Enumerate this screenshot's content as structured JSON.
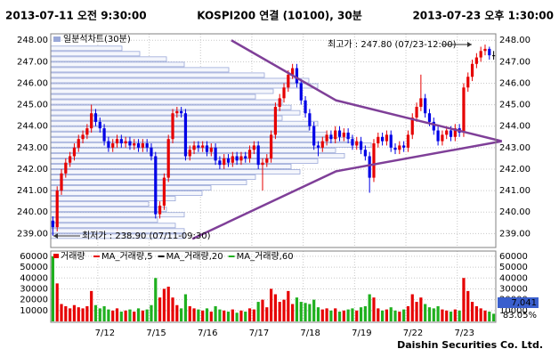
{
  "header": {
    "start": "2013-07-11 오전 9:30:00",
    "title": "KOSPI200 연결 (10100), 30분",
    "end": "2013-07-23 오후 1:30:00"
  },
  "footer": "Daishin Securities Co. Ltd.",
  "chart_data": {
    "type": "candlestick",
    "up_color": "#e60000",
    "down_color": "#0000e6",
    "grid": true,
    "ylim": [
      238.35,
      248.3
    ],
    "yticks": [
      {
        "value": 239,
        "label": "239.00"
      },
      {
        "value": 240,
        "label": "240.00"
      },
      {
        "value": 241,
        "label": "241.00"
      },
      {
        "value": 242,
        "label": "242.00"
      },
      {
        "value": 243,
        "label": "243.00"
      },
      {
        "value": 244,
        "label": "244.00"
      },
      {
        "value": 245,
        "label": "245.00"
      },
      {
        "value": 246,
        "label": "246.00"
      },
      {
        "value": 247,
        "label": "247.00"
      },
      {
        "value": 248,
        "label": "248.00"
      }
    ],
    "xlabels": [
      {
        "index": 11,
        "label": "7/12"
      },
      {
        "index": 23,
        "label": "7/15"
      },
      {
        "index": 35,
        "label": "7/16"
      },
      {
        "index": 47,
        "label": "7/17"
      },
      {
        "index": 59,
        "label": "7/18"
      },
      {
        "index": 71,
        "label": "7/19"
      },
      {
        "index": 83,
        "label": "7/22"
      },
      {
        "index": 95,
        "label": "7/23"
      }
    ],
    "candles": [
      [
        239.6,
        239.8,
        238.9,
        239.3
      ],
      [
        239.3,
        241.2,
        239.1,
        241.0
      ],
      [
        241.0,
        242.0,
        240.8,
        241.8
      ],
      [
        241.8,
        242.5,
        241.6,
        242.3
      ],
      [
        242.3,
        242.8,
        242.1,
        242.6
      ],
      [
        242.6,
        243.2,
        242.4,
        243.0
      ],
      [
        243.0,
        243.6,
        242.8,
        243.4
      ],
      [
        243.4,
        243.8,
        243.2,
        243.6
      ],
      [
        243.6,
        244.1,
        243.4,
        243.9
      ],
      [
        243.9,
        245.0,
        243.7,
        244.6
      ],
      [
        244.6,
        244.8,
        244.0,
        244.2
      ],
      [
        244.2,
        244.4,
        243.7,
        243.9
      ],
      [
        243.9,
        244.1,
        243.1,
        243.3
      ],
      [
        243.3,
        243.5,
        242.8,
        243.0
      ],
      [
        243.0,
        243.4,
        242.8,
        243.2
      ],
      [
        243.2,
        243.6,
        243.0,
        243.4
      ],
      [
        243.4,
        243.6,
        243.0,
        243.2
      ],
      [
        243.2,
        243.5,
        243.0,
        243.3
      ],
      [
        243.3,
        243.5,
        242.9,
        243.1
      ],
      [
        243.1,
        243.4,
        242.9,
        243.2
      ],
      [
        243.2,
        243.4,
        242.8,
        243.0
      ],
      [
        243.0,
        243.4,
        242.8,
        243.2
      ],
      [
        243.2,
        243.4,
        242.8,
        243.0
      ],
      [
        243.0,
        243.2,
        242.4,
        242.6
      ],
      [
        242.6,
        242.8,
        239.7,
        239.9
      ],
      [
        239.9,
        240.5,
        239.7,
        240.3
      ],
      [
        240.3,
        241.8,
        240.1,
        241.6
      ],
      [
        241.6,
        243.6,
        241.4,
        243.4
      ],
      [
        243.4,
        244.8,
        243.2,
        244.6
      ],
      [
        244.6,
        244.9,
        244.4,
        244.7
      ],
      [
        244.7,
        244.9,
        244.4,
        244.6
      ],
      [
        244.6,
        244.8,
        242.4,
        242.6
      ],
      [
        242.6,
        243.1,
        242.4,
        242.9
      ],
      [
        242.9,
        243.3,
        242.7,
        243.1
      ],
      [
        243.1,
        243.3,
        242.8,
        243.0
      ],
      [
        243.0,
        243.3,
        242.8,
        243.1
      ],
      [
        243.1,
        243.3,
        242.6,
        242.8
      ],
      [
        242.8,
        243.2,
        242.6,
        243.0
      ],
      [
        243.0,
        243.2,
        242.2,
        242.4
      ],
      [
        242.4,
        242.6,
        242.0,
        242.2
      ],
      [
        242.2,
        242.7,
        242.0,
        242.5
      ],
      [
        242.5,
        242.7,
        242.1,
        242.3
      ],
      [
        242.3,
        242.8,
        242.1,
        242.6
      ],
      [
        242.6,
        242.8,
        242.2,
        242.4
      ],
      [
        242.4,
        242.8,
        242.2,
        242.6
      ],
      [
        242.6,
        242.8,
        242.3,
        242.5
      ],
      [
        242.5,
        243.1,
        242.3,
        242.9
      ],
      [
        242.9,
        243.3,
        242.7,
        243.1
      ],
      [
        243.1,
        243.3,
        242.0,
        242.2
      ],
      [
        242.2,
        242.5,
        241.0,
        242.3
      ],
      [
        242.3,
        242.7,
        242.1,
        242.5
      ],
      [
        242.5,
        243.8,
        242.3,
        243.6
      ],
      [
        243.6,
        245.1,
        243.4,
        244.9
      ],
      [
        244.9,
        245.5,
        244.7,
        245.3
      ],
      [
        245.3,
        246.0,
        245.1,
        245.8
      ],
      [
        245.8,
        246.6,
        245.6,
        246.4
      ],
      [
        246.4,
        246.9,
        246.2,
        246.7
      ],
      [
        246.7,
        246.9,
        245.8,
        246.0
      ],
      [
        246.0,
        246.2,
        245.0,
        245.2
      ],
      [
        245.2,
        245.4,
        244.4,
        244.6
      ],
      [
        244.6,
        244.8,
        243.8,
        244.0
      ],
      [
        244.0,
        244.2,
        242.9,
        243.1
      ],
      [
        243.1,
        243.3,
        242.6,
        243.0
      ],
      [
        243.0,
        243.5,
        242.8,
        243.3
      ],
      [
        243.3,
        243.8,
        243.1,
        243.6
      ],
      [
        243.6,
        243.8,
        243.2,
        243.4
      ],
      [
        243.4,
        244.0,
        243.2,
        243.8
      ],
      [
        243.8,
        244.0,
        243.3,
        243.5
      ],
      [
        243.5,
        243.9,
        243.3,
        243.7
      ],
      [
        243.7,
        243.9,
        243.2,
        243.4
      ],
      [
        243.4,
        243.6,
        242.9,
        243.1
      ],
      [
        243.1,
        243.5,
        242.9,
        243.3
      ],
      [
        243.3,
        243.5,
        242.7,
        242.9
      ],
      [
        242.9,
        243.1,
        242.4,
        242.6
      ],
      [
        242.6,
        242.8,
        240.9,
        241.6
      ],
      [
        241.6,
        243.4,
        241.4,
        243.2
      ],
      [
        243.2,
        243.7,
        243.0,
        243.5
      ],
      [
        243.5,
        243.7,
        243.1,
        243.3
      ],
      [
        243.3,
        243.8,
        243.1,
        243.6
      ],
      [
        243.6,
        243.8,
        242.8,
        243.0
      ],
      [
        243.0,
        243.2,
        242.7,
        242.9
      ],
      [
        242.9,
        243.3,
        242.7,
        243.1
      ],
      [
        243.1,
        243.3,
        242.8,
        243.0
      ],
      [
        243.0,
        243.8,
        242.8,
        243.6
      ],
      [
        243.6,
        244.6,
        243.4,
        244.4
      ],
      [
        244.4,
        245.1,
        244.2,
        244.9
      ],
      [
        244.9,
        246.4,
        244.7,
        245.3
      ],
      [
        245.3,
        245.5,
        244.4,
        244.6
      ],
      [
        244.6,
        244.8,
        244.0,
        244.2
      ],
      [
        244.2,
        244.4,
        243.6,
        243.8
      ],
      [
        243.8,
        244.0,
        243.1,
        243.3
      ],
      [
        243.3,
        243.8,
        243.1,
        243.6
      ],
      [
        243.6,
        244.0,
        243.4,
        243.8
      ],
      [
        243.8,
        244.0,
        243.3,
        243.5
      ],
      [
        243.5,
        244.1,
        243.3,
        243.9
      ],
      [
        243.9,
        244.1,
        243.5,
        243.7
      ],
      [
        243.7,
        246.0,
        243.5,
        245.8
      ],
      [
        245.8,
        246.5,
        245.6,
        246.3
      ],
      [
        246.3,
        247.1,
        246.1,
        246.9
      ],
      [
        246.9,
        247.4,
        246.7,
        247.2
      ],
      [
        247.2,
        247.7,
        247.0,
        247.5
      ],
      [
        247.5,
        247.8,
        247.3,
        247.6
      ],
      [
        247.6,
        247.7,
        247.1,
        247.3
      ],
      [
        247.3,
        247.5,
        247.1,
        247.3
      ]
    ],
    "high_label": "최고가 : 247.80 (07/23-12:00)",
    "low_label": "최저가 : 238.90 (07/11-09:30)",
    "trendline_color": "#7f3f98",
    "trendlines": [
      [
        [
          41.7,
          248.0
        ],
        [
          66.2,
          245.2
        ],
        [
          104.9,
          243.3
        ]
      ],
      [
        [
          32.6,
          238.75
        ],
        [
          66.2,
          241.9
        ],
        [
          104.9,
          243.3
        ]
      ]
    ],
    "volume_profile": {
      "name": "일분석차트(30분)",
      "color": "#9aa8d8",
      "xlim": [
        0,
        500
      ],
      "bins": [
        238.75,
        239,
        239.25,
        239.5,
        239.75,
        240,
        240.25,
        240.5,
        240.75,
        241,
        241.25,
        241.5,
        241.75,
        242,
        242.25,
        242.5,
        242.75,
        243,
        243.25,
        243.5,
        243.75,
        244,
        244.25,
        244.5,
        244.75,
        245,
        245.25,
        245.5,
        245.75,
        246,
        246.25,
        246.5,
        246.75,
        247,
        247.25,
        247.5,
        247.75
      ],
      "counts": [
        150,
        150,
        140,
        120,
        150,
        130,
        110,
        140,
        170,
        180,
        220,
        230,
        280,
        270,
        300,
        330,
        320,
        360,
        340,
        310,
        290,
        300,
        260,
        280,
        270,
        260,
        230,
        250,
        300,
        290,
        240,
        200,
        150,
        130,
        100,
        80
      ]
    },
    "volume": {
      "name": "거래량",
      "up_color": "#e60000",
      "down_color": "#1fb01f",
      "ylim": [
        0,
        64000
      ],
      "yticks": [
        10000,
        20000,
        30000,
        40000,
        50000,
        60000
      ],
      "ma_legend": [
        {
          "name": "MA_거래량,5",
          "color": "#e60000"
        },
        {
          "name": "MA_거래량,20",
          "color": "#000000"
        },
        {
          "name": "MA_거래량,60",
          "color": "#1fb01f"
        }
      ],
      "values": [
        60000,
        35000,
        16000,
        14000,
        12000,
        15000,
        13000,
        12000,
        14000,
        28000,
        15000,
        12000,
        14000,
        11000,
        10000,
        12000,
        9000,
        10000,
        11000,
        9000,
        12000,
        10000,
        11000,
        15000,
        40000,
        22000,
        30000,
        32000,
        22000,
        15000,
        12000,
        25000,
        14000,
        12000,
        11000,
        10000,
        12000,
        9000,
        14000,
        11000,
        10000,
        9000,
        11000,
        8000,
        10000,
        9000,
        12000,
        11000,
        18000,
        20000,
        13000,
        30000,
        25000,
        18000,
        20000,
        28000,
        16000,
        22000,
        18000,
        17000,
        16000,
        20000,
        13000,
        11000,
        12000,
        10000,
        12000,
        9000,
        10000,
        11000,
        12000,
        10000,
        13000,
        14000,
        25000,
        22000,
        12000,
        10000,
        11000,
        13000,
        10000,
        9000,
        11000,
        14000,
        25000,
        18000,
        22000,
        16000,
        13000,
        12000,
        14000,
        11000,
        10000,
        9000,
        11000,
        10000,
        40000,
        28000,
        18000,
        14000,
        12000,
        10000,
        9000,
        7041
      ],
      "last_value_label": "7,041",
      "ratio_label": "83.05%"
    }
  }
}
